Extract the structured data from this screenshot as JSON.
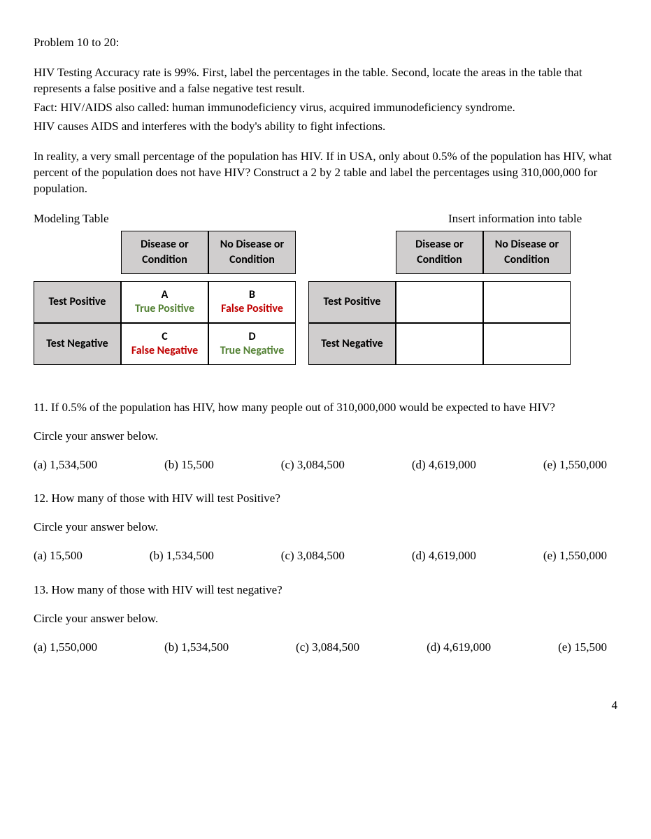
{
  "header": "Problem 10 to 20:",
  "intro": {
    "p1": "HIV Testing Accuracy rate is 99%. First, label the percentages in the table. Second, locate the areas in the table that represents a false positive and a false negative test result.",
    "p2": "Fact: HIV/AIDS also called: human immunodeficiency virus, acquired immunodeficiency syndrome.",
    "p3": "HIV causes AIDS and interferes with the body's ability to fight infections.",
    "p4": "In reality, a very small percentage of the population has HIV. If in USA, only about 0.5% of the population has HIV, what percent of the population does not have HIV? Construct a 2 by 2 table and label the percentages using 310,000,000 for population."
  },
  "modeling_label": "Modeling Table",
  "insert_label": "Insert information into table",
  "table": {
    "col1": "Disease or Condition",
    "col2": "No Disease or Condition",
    "row1": "Test Positive",
    "row2": "Test Negative",
    "cells": {
      "a_letter": "A",
      "a_text": "True Positive",
      "b_letter": "B",
      "b_text": "False Positive",
      "c_letter": "C",
      "c_text": "False Negative",
      "d_letter": "D",
      "d_text": "True Negative"
    }
  },
  "questions": [
    {
      "text": "11. If 0.5% of the population has HIV, how many people out of 310,000,000 would be expected to have HIV?",
      "instr": "Circle your answer below.",
      "choices": [
        "(a) 1,534,500",
        "(b) 15,500",
        "(c) 3,084,500",
        "(d) 4,619,000",
        "(e) 1,550,000"
      ]
    },
    {
      "text": "12.  How many of those with HIV will test Positive?",
      "instr": "Circle your answer below.",
      "choices": [
        "(a) 15,500",
        "(b) 1,534,500",
        "(c) 3,084,500",
        "(d) 4,619,000",
        "(e) 1,550,000"
      ]
    },
    {
      "text": "13. How many of those with HIV will test negative?",
      "instr": "Circle your answer below.",
      "choices": [
        "(a) 1,550,000",
        "(b) 1,534,500",
        "(c) 3,084,500",
        "(d) 4,619,000",
        "(e) 15,500"
      ]
    }
  ],
  "page_number": "4"
}
